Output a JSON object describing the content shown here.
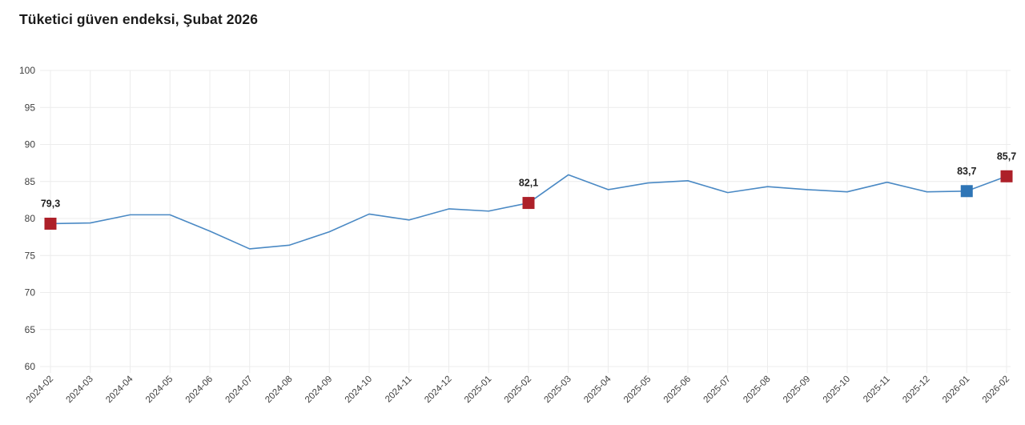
{
  "header": {
    "title": "Tüketici güven endeksi, Şubat 2026"
  },
  "chart_data": {
    "type": "line",
    "title": "Tüketici güven endeksi, Şubat 2026",
    "categories": [
      "2024-02",
      "2024-03",
      "2024-04",
      "2024-05",
      "2024-06",
      "2024-07",
      "2024-08",
      "2024-09",
      "2024-10",
      "2024-11",
      "2024-12",
      "2025-01",
      "2025-02",
      "2025-03",
      "2025-04",
      "2025-05",
      "2025-06",
      "2025-07",
      "2025-08",
      "2025-09",
      "2025-10",
      "2025-11",
      "2025-12",
      "2026-01",
      "2026-02"
    ],
    "values": [
      79.3,
      79.4,
      80.5,
      80.5,
      78.3,
      75.9,
      76.4,
      78.2,
      80.6,
      79.8,
      81.3,
      81.0,
      82.1,
      85.9,
      83.9,
      84.8,
      85.1,
      83.5,
      84.3,
      83.9,
      83.6,
      84.9,
      83.6,
      83.7,
      85.7
    ],
    "ylim": [
      60,
      100
    ],
    "yticks": [
      60,
      65,
      70,
      75,
      80,
      85,
      90,
      95,
      100
    ],
    "grid": true,
    "legend": "none",
    "xlabel": "",
    "ylabel": "",
    "highlights": [
      {
        "index": 0,
        "label": "79,3",
        "color": "#ad2029"
      },
      {
        "index": 12,
        "label": "82,1",
        "color": "#ad2029"
      },
      {
        "index": 23,
        "label": "83,7",
        "color": "#2e75b6"
      },
      {
        "index": 24,
        "label": "85,7",
        "color": "#ad2029"
      }
    ],
    "colors": {
      "line": "#4a89c4",
      "grid": "#ececec",
      "axis_text": "#404040",
      "label_text": "#1f1f1f",
      "title_text": "#1b1b1b"
    }
  }
}
